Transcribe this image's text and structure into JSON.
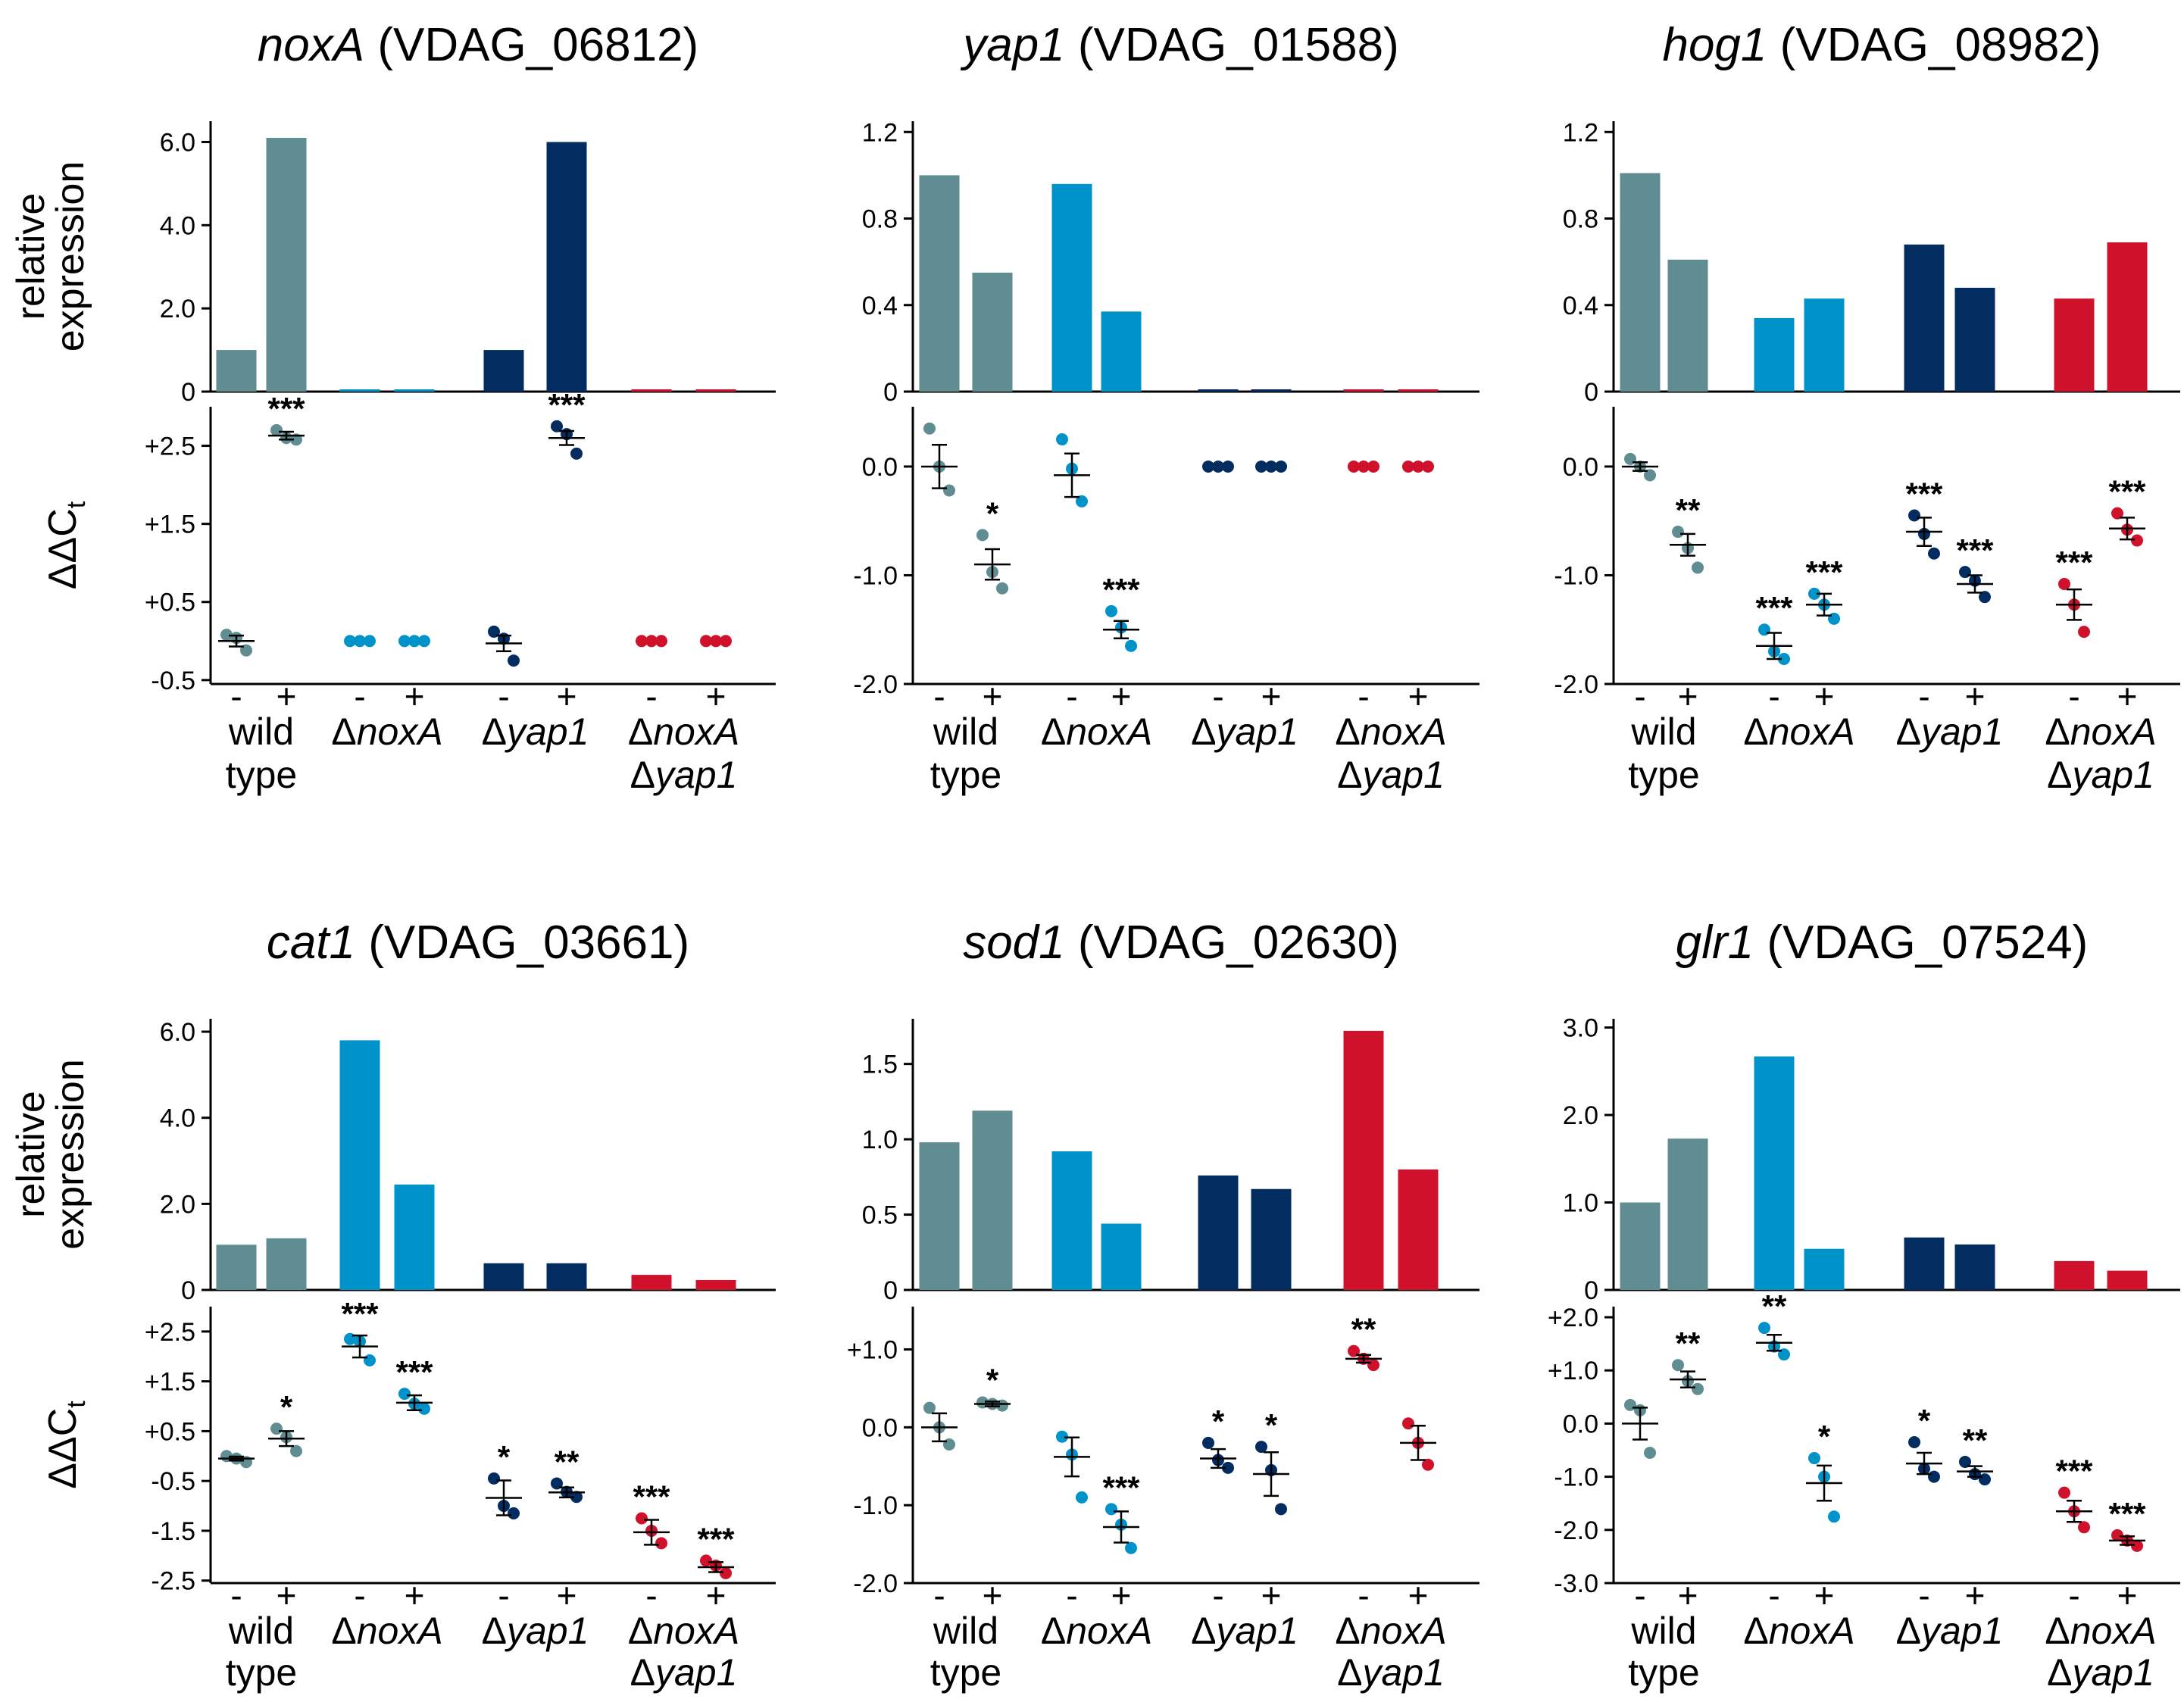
{
  "colors": {
    "wild_type": "#5f8d91",
    "noxA": "#0093c9",
    "yap1": "#032c61",
    "noxA_yap1": "#d0112b"
  },
  "shared": {
    "ylabel_top_1": "relative",
    "ylabel_top_2": "expression",
    "ylabel_bottom": "ΔΔC",
    "ylabel_bottom_sub": "t",
    "treatments": [
      "-",
      "+"
    ],
    "strains": [
      {
        "line1": "wild",
        "line2": "type",
        "italic": false
      },
      {
        "line1": "ΔnoxA",
        "line2": "",
        "italic": true
      },
      {
        "line1": "Δyap1",
        "line2": "",
        "italic": true
      },
      {
        "line1": "ΔnoxA",
        "line2": "Δyap1",
        "italic": true
      }
    ]
  },
  "chart_data": [
    {
      "type": "bar+dotplot",
      "gene": "noxA",
      "gene_id": "(VDAG_06812)",
      "categories": [
        "wild type -",
        "wild type +",
        "ΔnoxA -",
        "ΔnoxA +",
        "Δyap1 -",
        "Δyap1 +",
        "ΔnoxA Δyap1 -",
        "ΔnoxA Δyap1 +"
      ],
      "relative_expression": [
        1.0,
        6.1,
        0.05,
        0.05,
        1.0,
        6.0,
        0.05,
        0.05
      ],
      "top_ylim": [
        0,
        6.5
      ],
      "top_ticks": [
        "0",
        "2.0",
        "4.0",
        "6.0"
      ],
      "top_tick_values": [
        0,
        2,
        4,
        6
      ],
      "ddct_mean": [
        0.0,
        2.63,
        0.0,
        0.0,
        -0.03,
        2.6,
        0.0,
        0.0
      ],
      "ddct_sem": [
        0.07,
        0.05,
        0.0,
        0.0,
        0.1,
        0.09,
        0.0,
        0.0
      ],
      "ddct_points": [
        [
          0.08,
          0.04,
          -0.12
        ],
        [
          2.7,
          2.6,
          2.58
        ],
        [
          0,
          0,
          0
        ],
        [
          0,
          0,
          0
        ],
        [
          0.12,
          0.03,
          -0.25
        ],
        [
          2.75,
          2.65,
          2.4
        ],
        [
          0,
          0,
          0
        ],
        [
          0,
          0,
          0
        ]
      ],
      "bottom_ylim": [
        -0.55,
        3.0
      ],
      "bottom_ticks": [
        "+2.5",
        "+1.5",
        "+0.5",
        "-0.5"
      ],
      "bottom_tick_values": [
        2.5,
        1.5,
        0.5,
        -0.5
      ],
      "significance": [
        "",
        "***",
        "",
        "",
        "",
        "***",
        "",
        ""
      ]
    },
    {
      "type": "bar+dotplot",
      "gene": "yap1",
      "gene_id": "(VDAG_01588)",
      "categories": [
        "wild type -",
        "wild type +",
        "ΔnoxA -",
        "ΔnoxA +",
        "Δyap1 -",
        "Δyap1 +",
        "ΔnoxA Δyap1 -",
        "ΔnoxA Δyap1 +"
      ],
      "relative_expression": [
        1.0,
        0.55,
        0.96,
        0.37,
        0.01,
        0.01,
        0.01,
        0.01
      ],
      "top_ylim": [
        0,
        1.25
      ],
      "top_ticks": [
        "0",
        "0.4",
        "0.8",
        "1.2"
      ],
      "top_tick_values": [
        0,
        0.4,
        0.8,
        1.2
      ],
      "ddct_mean": [
        0.0,
        -0.9,
        -0.08,
        -1.5,
        0.0,
        0.0,
        0.0,
        0.0
      ],
      "ddct_sem": [
        0.2,
        0.14,
        0.2,
        0.08,
        0.0,
        0.0,
        0.0,
        0.0
      ],
      "ddct_points": [
        [
          0.35,
          0.0,
          -0.22
        ],
        [
          -0.63,
          -0.97,
          -1.12
        ],
        [
          0.25,
          -0.02,
          -0.32
        ],
        [
          -1.33,
          -1.48,
          -1.65
        ],
        [
          0,
          0,
          0
        ],
        [
          0,
          0,
          0
        ],
        [
          0,
          0,
          0
        ],
        [
          0,
          0,
          0
        ]
      ],
      "bottom_ylim": [
        -2.0,
        0.55
      ],
      "bottom_ticks": [
        "0.0",
        "-1.0",
        "-2.0"
      ],
      "bottom_tick_values": [
        0,
        -1,
        -2
      ],
      "significance": [
        "",
        "*",
        "",
        "***",
        "",
        "",
        "",
        ""
      ]
    },
    {
      "type": "bar+dotplot",
      "gene": "hog1",
      "gene_id": "(VDAG_08982)",
      "categories": [
        "wild type -",
        "wild type +",
        "ΔnoxA -",
        "ΔnoxA +",
        "Δyap1 -",
        "Δyap1 +",
        "ΔnoxA Δyap1 -",
        "ΔnoxA Δyap1 +"
      ],
      "relative_expression": [
        1.01,
        0.61,
        0.34,
        0.43,
        0.68,
        0.48,
        0.43,
        0.69
      ],
      "top_ylim": [
        0,
        1.25
      ],
      "top_ticks": [
        "0",
        "0.4",
        "0.8",
        "1.2"
      ],
      "top_tick_values": [
        0,
        0.4,
        0.8,
        1.2
      ],
      "ddct_mean": [
        0.0,
        -0.72,
        -1.65,
        -1.27,
        -0.6,
        -1.08,
        -1.27,
        -0.57
      ],
      "ddct_sem": [
        0.04,
        0.1,
        0.12,
        0.1,
        0.13,
        0.08,
        0.14,
        0.1
      ],
      "ddct_points": [
        [
          0.07,
          0.0,
          -0.08
        ],
        [
          -0.6,
          -0.75,
          -0.93
        ],
        [
          -1.5,
          -1.7,
          -1.77
        ],
        [
          -1.17,
          -1.27,
          -1.4
        ],
        [
          -0.45,
          -0.62,
          -0.8
        ],
        [
          -0.97,
          -1.05,
          -1.2
        ],
        [
          -1.08,
          -1.27,
          -1.52
        ],
        [
          -0.43,
          -0.58,
          -0.68
        ]
      ],
      "bottom_ylim": [
        -2.0,
        0.55
      ],
      "bottom_ticks": [
        "0.0",
        "-1.0",
        "-2.0"
      ],
      "bottom_tick_values": [
        0,
        -1,
        -2
      ],
      "significance": [
        "",
        "**",
        "***",
        "***",
        "***",
        "***",
        "***",
        "***"
      ]
    },
    {
      "type": "bar+dotplot",
      "gene": "cat1",
      "gene_id": "(VDAG_03661)",
      "categories": [
        "wild type -",
        "wild type +",
        "ΔnoxA -",
        "ΔnoxA +",
        "Δyap1 -",
        "Δyap1 +",
        "ΔnoxA Δyap1 -",
        "ΔnoxA Δyap1 +"
      ],
      "relative_expression": [
        1.05,
        1.2,
        5.8,
        2.45,
        0.62,
        0.62,
        0.35,
        0.23
      ],
      "top_ylim": [
        0,
        6.3
      ],
      "top_ticks": [
        "0",
        "2.0",
        "4.0",
        "6.0"
      ],
      "top_tick_values": [
        0,
        2,
        4,
        6
      ],
      "ddct_mean": [
        -0.05,
        0.35,
        2.2,
        1.07,
        -0.84,
        -0.73,
        -1.53,
        -2.23
      ],
      "ddct_sem": [
        0.04,
        0.15,
        0.22,
        0.15,
        0.35,
        0.1,
        0.25,
        0.1
      ],
      "ddct_points": [
        [
          0.0,
          -0.05,
          -0.12
        ],
        [
          0.55,
          0.38,
          0.1
        ],
        [
          2.35,
          2.3,
          1.92
        ],
        [
          1.25,
          1.05,
          0.95
        ],
        [
          -0.45,
          -1.0,
          -1.15
        ],
        [
          -0.55,
          -0.72,
          -0.82
        ],
        [
          -1.25,
          -1.5,
          -1.75
        ],
        [
          -2.1,
          -2.2,
          -2.35
        ]
      ],
      "bottom_ylim": [
        -2.55,
        3.0
      ],
      "bottom_ticks": [
        "+2.5",
        "+1.5",
        "+0.5",
        "-0.5",
        "-1.5",
        "-2.5"
      ],
      "bottom_tick_values": [
        2.5,
        1.5,
        0.5,
        -0.5,
        -1.5,
        -2.5
      ],
      "significance": [
        "",
        "*",
        "***",
        "***",
        "*",
        "**",
        "***",
        "***"
      ]
    },
    {
      "type": "bar+dotplot",
      "gene": "sod1",
      "gene_id": "(VDAG_02630)",
      "categories": [
        "wild type -",
        "wild type +",
        "ΔnoxA -",
        "ΔnoxA +",
        "Δyap1 -",
        "Δyap1 +",
        "ΔnoxA Δyap1 -",
        "ΔnoxA Δyap1 +"
      ],
      "relative_expression": [
        0.98,
        1.19,
        0.92,
        0.44,
        0.76,
        0.67,
        1.72,
        0.8
      ],
      "top_ylim": [
        0,
        1.8
      ],
      "top_ticks": [
        "0",
        "0.5",
        "1.0",
        "1.5"
      ],
      "top_tick_values": [
        0,
        0.5,
        1.0,
        1.5
      ],
      "ddct_mean": [
        0.0,
        0.3,
        -0.38,
        -1.28,
        -0.4,
        -0.6,
        0.88,
        -0.2
      ],
      "ddct_sem": [
        0.18,
        0.03,
        0.25,
        0.2,
        0.12,
        0.28,
        0.05,
        0.22
      ],
      "ddct_points": [
        [
          0.25,
          0.0,
          -0.22
        ],
        [
          0.32,
          0.3,
          0.28
        ],
        [
          -0.12,
          -0.35,
          -0.9
        ],
        [
          -1.05,
          -1.25,
          -1.55
        ],
        [
          -0.2,
          -0.42,
          -0.52
        ],
        [
          -0.25,
          -0.55,
          -1.05
        ],
        [
          0.98,
          0.88,
          0.8
        ],
        [
          0.05,
          -0.2,
          -0.48
        ]
      ],
      "bottom_ylim": [
        -2.0,
        1.55
      ],
      "bottom_ticks": [
        "+1.0",
        "0.0",
        "-1.0",
        "-2.0"
      ],
      "bottom_tick_values": [
        1,
        0,
        -1,
        -2
      ],
      "significance": [
        "",
        "*",
        "",
        "***",
        "*",
        "*",
        "**",
        ""
      ]
    },
    {
      "type": "bar+dotplot",
      "gene": "glr1",
      "gene_id": "(VDAG_07524)",
      "categories": [
        "wild type -",
        "wild type +",
        "ΔnoxA -",
        "ΔnoxA +",
        "Δyap1 -",
        "Δyap1 +",
        "ΔnoxA Δyap1 -",
        "ΔnoxA Δyap1 +"
      ],
      "relative_expression": [
        1.0,
        1.73,
        2.67,
        0.47,
        0.6,
        0.52,
        0.33,
        0.22
      ],
      "top_ylim": [
        0,
        3.1
      ],
      "top_ticks": [
        "0",
        "1.0",
        "2.0",
        "3.0"
      ],
      "top_tick_values": [
        0,
        1,
        2,
        3
      ],
      "ddct_mean": [
        0.0,
        0.83,
        1.52,
        -1.12,
        -0.75,
        -0.9,
        -1.65,
        -2.2
      ],
      "ddct_sem": [
        0.3,
        0.15,
        0.15,
        0.33,
        0.2,
        0.1,
        0.2,
        0.08
      ],
      "ddct_points": [
        [
          0.35,
          0.25,
          -0.55
        ],
        [
          1.1,
          0.8,
          0.65
        ],
        [
          1.8,
          1.45,
          1.3
        ],
        [
          -0.65,
          -1.0,
          -1.75
        ],
        [
          -0.35,
          -0.85,
          -1.0
        ],
        [
          -0.72,
          -0.95,
          -1.05
        ],
        [
          -1.3,
          -1.65,
          -1.95
        ],
        [
          -2.1,
          -2.2,
          -2.3
        ]
      ],
      "bottom_ylim": [
        -3.0,
        2.2
      ],
      "bottom_ticks": [
        "+2.0",
        "+1.0",
        "0.0",
        "-1.0",
        "-2.0",
        "-3.0"
      ],
      "bottom_tick_values": [
        2,
        1,
        0,
        -1,
        -2,
        -3
      ],
      "significance": [
        "",
        "**",
        "**",
        "*",
        "*",
        "**",
        "***",
        "***"
      ]
    }
  ]
}
